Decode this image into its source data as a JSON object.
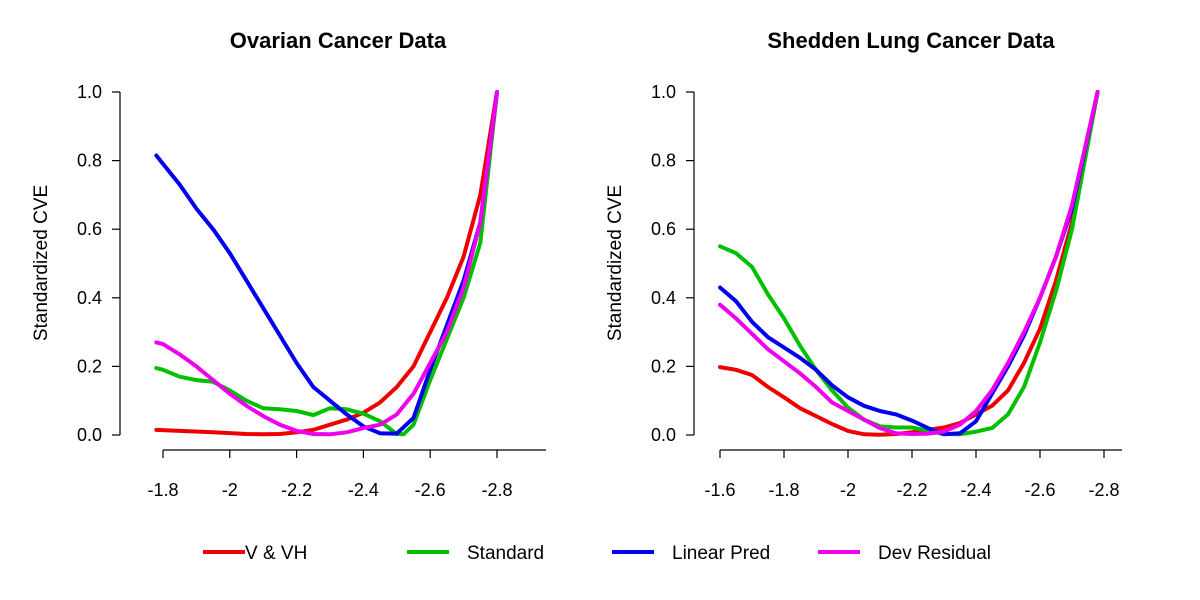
{
  "colors": {
    "red": "#ee0000",
    "green": "#00c000",
    "blue": "#0000ee",
    "magenta": "#ee00ee"
  },
  "chart_data": [
    {
      "type": "line",
      "title": "Ovarian Cancer Data",
      "xlabel": "",
      "ylabel": "Standardized CVE",
      "x_ticks": [
        "-1.8",
        "-2",
        "-2.2",
        "-2.4",
        "-2.6",
        "-2.8"
      ],
      "x_tick_values": [
        -1.8,
        -2.0,
        -2.2,
        -2.4,
        -2.6,
        -2.8
      ],
      "y_ticks": [
        "0.0",
        "0.2",
        "0.4",
        "0.6",
        "0.8",
        "1.0"
      ],
      "y_tick_values": [
        0,
        0.2,
        0.4,
        0.6,
        0.8,
        1.0
      ],
      "xlim": [
        -1.77,
        -2.95
      ],
      "ylim": [
        -0.04,
        1.04
      ],
      "grid": false,
      "series": [
        {
          "name": "V & VH",
          "color": "red",
          "x": [
            -1.78,
            -1.85,
            -1.95,
            -2.05,
            -2.1,
            -2.15,
            -2.2,
            -2.25,
            -2.3,
            -2.35,
            -2.4,
            -2.45,
            -2.5,
            -2.55,
            -2.6,
            -2.65,
            -2.7,
            -2.75,
            -2.8
          ],
          "y": [
            0.015,
            0.012,
            0.008,
            0.003,
            0.002,
            0.003,
            0.008,
            0.015,
            0.03,
            0.045,
            0.065,
            0.095,
            0.14,
            0.2,
            0.3,
            0.4,
            0.52,
            0.7,
            1.0
          ]
        },
        {
          "name": "Standard",
          "color": "green",
          "x": [
            -1.78,
            -1.8,
            -1.85,
            -1.9,
            -1.95,
            -2.0,
            -2.05,
            -2.1,
            -2.15,
            -2.2,
            -2.25,
            -2.3,
            -2.35,
            -2.4,
            -2.45,
            -2.5,
            -2.52,
            -2.55,
            -2.6,
            -2.65,
            -2.7,
            -2.75,
            -2.8
          ],
          "y": [
            0.195,
            0.19,
            0.17,
            0.16,
            0.155,
            0.13,
            0.1,
            0.078,
            0.075,
            0.07,
            0.058,
            0.078,
            0.075,
            0.062,
            0.04,
            0.003,
            0.002,
            0.03,
            0.16,
            0.28,
            0.4,
            0.56,
            1.0
          ]
        },
        {
          "name": "Linear Pred",
          "color": "blue",
          "x": [
            -1.78,
            -1.85,
            -1.9,
            -1.95,
            -2.0,
            -2.05,
            -2.1,
            -2.15,
            -2.2,
            -2.25,
            -2.3,
            -2.35,
            -2.4,
            -2.45,
            -2.5,
            -2.55,
            -2.6,
            -2.65,
            -2.7,
            -2.75,
            -2.8
          ],
          "y": [
            0.815,
            0.73,
            0.66,
            0.6,
            0.53,
            0.45,
            0.37,
            0.29,
            0.21,
            0.14,
            0.1,
            0.06,
            0.025,
            0.005,
            0.004,
            0.05,
            0.19,
            0.32,
            0.45,
            0.62,
            1.0
          ]
        },
        {
          "name": "Dev Residual",
          "color": "magenta",
          "x": [
            -1.78,
            -1.8,
            -1.85,
            -1.9,
            -1.95,
            -2.0,
            -2.05,
            -2.1,
            -2.15,
            -2.2,
            -2.25,
            -2.3,
            -2.35,
            -2.4,
            -2.45,
            -2.5,
            -2.55,
            -2.6,
            -2.65,
            -2.7,
            -2.75,
            -2.8
          ],
          "y": [
            0.27,
            0.265,
            0.235,
            0.2,
            0.16,
            0.12,
            0.085,
            0.055,
            0.03,
            0.012,
            0.003,
            0.002,
            0.008,
            0.02,
            0.03,
            0.06,
            0.12,
            0.21,
            0.3,
            0.43,
            0.62,
            1.0
          ]
        }
      ]
    },
    {
      "type": "line",
      "title": "Shedden Lung Cancer Data",
      "xlabel": "",
      "ylabel": "Standardized CVE",
      "x_ticks": [
        "-1.6",
        "-1.8",
        "-2",
        "-2.2",
        "-2.4",
        "-2.6",
        "-2.8"
      ],
      "x_tick_values": [
        -1.6,
        -1.8,
        -2.0,
        -2.2,
        -2.4,
        -2.6,
        -2.8
      ],
      "y_ticks": [
        "0.0",
        "0.2",
        "0.4",
        "0.6",
        "0.8",
        "1.0"
      ],
      "y_tick_values": [
        0,
        0.2,
        0.4,
        0.6,
        0.8,
        1.0
      ],
      "xlim": [
        -1.57,
        -2.85
      ],
      "ylim": [
        -0.04,
        1.04
      ],
      "grid": false,
      "series": [
        {
          "name": "V & VH",
          "color": "red",
          "x": [
            -1.6,
            -1.65,
            -1.7,
            -1.75,
            -1.8,
            -1.85,
            -1.9,
            -1.95,
            -2.0,
            -2.05,
            -2.1,
            -2.15,
            -2.2,
            -2.25,
            -2.3,
            -2.35,
            -2.4,
            -2.45,
            -2.5,
            -2.55,
            -2.6,
            -2.65,
            -2.7,
            -2.78
          ],
          "y": [
            0.198,
            0.19,
            0.175,
            0.14,
            0.11,
            0.078,
            0.055,
            0.032,
            0.012,
            0.002,
            0.001,
            0.003,
            0.008,
            0.015,
            0.022,
            0.035,
            0.06,
            0.085,
            0.13,
            0.21,
            0.31,
            0.45,
            0.62,
            1.0
          ]
        },
        {
          "name": "Standard",
          "color": "green",
          "x": [
            -1.6,
            -1.65,
            -1.7,
            -1.75,
            -1.8,
            -1.85,
            -1.9,
            -1.95,
            -2.0,
            -2.05,
            -2.1,
            -2.15,
            -2.2,
            -2.25,
            -2.3,
            -2.35,
            -2.4,
            -2.45,
            -2.5,
            -2.55,
            -2.6,
            -2.65,
            -2.7,
            -2.78
          ],
          "y": [
            0.55,
            0.53,
            0.49,
            0.41,
            0.34,
            0.26,
            0.19,
            0.13,
            0.08,
            0.045,
            0.025,
            0.022,
            0.022,
            0.012,
            0.003,
            0.002,
            0.01,
            0.02,
            0.06,
            0.14,
            0.27,
            0.42,
            0.6,
            1.0
          ]
        },
        {
          "name": "Linear Pred",
          "color": "blue",
          "x": [
            -1.6,
            -1.65,
            -1.7,
            -1.75,
            -1.8,
            -1.85,
            -1.9,
            -1.95,
            -2.0,
            -2.05,
            -2.1,
            -2.15,
            -2.2,
            -2.25,
            -2.3,
            -2.35,
            -2.4,
            -2.45,
            -2.5,
            -2.55,
            -2.6,
            -2.65,
            -2.7,
            -2.78
          ],
          "y": [
            0.43,
            0.39,
            0.33,
            0.285,
            0.255,
            0.225,
            0.19,
            0.145,
            0.11,
            0.085,
            0.07,
            0.06,
            0.042,
            0.02,
            0.002,
            0.005,
            0.04,
            0.12,
            0.2,
            0.29,
            0.4,
            0.52,
            0.66,
            1.0
          ]
        },
        {
          "name": "Dev Residual",
          "color": "magenta",
          "x": [
            -1.6,
            -1.65,
            -1.7,
            -1.75,
            -1.8,
            -1.85,
            -1.9,
            -1.95,
            -2.0,
            -2.05,
            -2.1,
            -2.15,
            -2.2,
            -2.25,
            -2.3,
            -2.35,
            -2.4,
            -2.45,
            -2.5,
            -2.55,
            -2.6,
            -2.65,
            -2.7,
            -2.78
          ],
          "y": [
            0.38,
            0.34,
            0.295,
            0.25,
            0.215,
            0.18,
            0.14,
            0.095,
            0.07,
            0.045,
            0.02,
            0.005,
            0.003,
            0.004,
            0.01,
            0.03,
            0.07,
            0.13,
            0.21,
            0.3,
            0.4,
            0.52,
            0.67,
            1.0
          ]
        }
      ]
    }
  ],
  "legend": {
    "placement": "bottom",
    "items": [
      {
        "label": "V & VH",
        "color": "red"
      },
      {
        "label": "Standard",
        "color": "green"
      },
      {
        "label": "Linear Pred",
        "color": "blue"
      },
      {
        "label": "Dev Residual",
        "color": "magenta"
      }
    ]
  }
}
